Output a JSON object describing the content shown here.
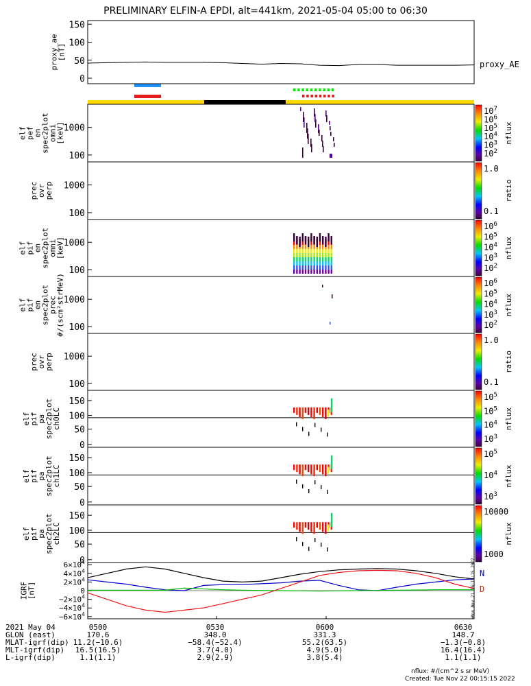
{
  "title": "PRELIMINARY ELFIN-A EPDI, alt=441km, 2021-05-04 05:00 to 06:30",
  "colors": {
    "science_bar": "#ffd700",
    "eclipse_bar": "#000000",
    "blue_marker": "#1e90ff",
    "red_marker": "#e41a1c",
    "green_marker": "#00ee00",
    "igrf_n": "#0000cc",
    "igrf_d": "#dd2200"
  },
  "chart_data": [
    {
      "type": "line",
      "panel": "proxy_ae",
      "ylabel": [
        "proxy_ae",
        "[nT]"
      ],
      "yticks": [
        0,
        50,
        100,
        150
      ],
      "ylim": [
        0,
        160
      ],
      "series_label": "proxy_AE",
      "x": [
        0,
        0.05,
        0.1,
        0.15,
        0.2,
        0.25,
        0.3,
        0.35,
        0.4,
        0.45,
        0.5,
        0.55,
        0.6,
        0.65,
        0.7,
        0.75,
        0.8,
        0.85,
        0.9,
        0.95,
        1.0
      ],
      "values": [
        42,
        43,
        44,
        45,
        44,
        44,
        44,
        43,
        41,
        39,
        41,
        40,
        36,
        35,
        38,
        38,
        36,
        36,
        36,
        36,
        37
      ]
    },
    {
      "type": "heatmap",
      "panel": "elf_pef_en_spec2plot_omni",
      "ylabel": [
        "elf",
        "pef",
        "en",
        "spec2plot",
        "omni",
        "[keV]"
      ],
      "yticks": [
        "100",
        "1000"
      ],
      "colorbar_ticks": [
        "10^7",
        "10^6",
        "10^5",
        "10^4",
        "10^3",
        "10^2"
      ],
      "colorbar_label": "nflux"
    },
    {
      "type": "heatmap",
      "panel": "prec_ovr_perp_e",
      "ylabel": [
        "prec",
        "ovr",
        "perp"
      ],
      "yticks": [
        "100",
        "1000"
      ],
      "colorbar_ticks": [
        "1.0",
        "0.1"
      ],
      "colorbar_label": "ratio"
    },
    {
      "type": "heatmap",
      "panel": "elf_pif_en_spec2plot_omni",
      "ylabel": [
        "elf",
        "pif",
        "en",
        "spec2plot",
        "omni",
        "[keV]"
      ],
      "yticks": [
        "100",
        "1000"
      ],
      "colorbar_ticks": [
        "10^6",
        "10^5",
        "10^4",
        "10^3",
        "10^2"
      ],
      "colorbar_label": "nflux"
    },
    {
      "type": "heatmap",
      "panel": "elf_pif_en_spec2plot_prec",
      "ylabel": [
        "elf",
        "pif",
        "en",
        "spec2plot",
        "prec",
        "#/(scm²strMeV)"
      ],
      "yticks": [
        "100",
        "1000"
      ],
      "colorbar_ticks": [
        "10^6",
        "10^5",
        "10^4",
        "10^3",
        "10^2"
      ],
      "colorbar_label": "nflux"
    },
    {
      "type": "heatmap",
      "panel": "prec_ovr_perp_i",
      "ylabel": [
        "prec",
        "ovr",
        "perp"
      ],
      "yticks": [
        "100",
        "1000"
      ],
      "colorbar_ticks": [
        "1.0",
        "0.1"
      ],
      "colorbar_label": "ratio"
    },
    {
      "type": "heatmap",
      "panel": "elf_pif_pa_spec2plot_ch0LC",
      "ylabel": [
        "elf",
        "pif",
        "pa",
        "spec2plot",
        "ch0LC"
      ],
      "yticks": [
        "0",
        "50",
        "100",
        "150"
      ],
      "colorbar_ticks": [
        "10^5",
        "10^5",
        "10^4",
        "10^3"
      ],
      "colorbar_label": "nflux"
    },
    {
      "type": "heatmap",
      "panel": "elf_pif_pa_spec2plot_ch1LC",
      "ylabel": [
        "elf",
        "pif",
        "pa",
        "spec2plot",
        "ch1LC"
      ],
      "yticks": [
        "0",
        "50",
        "100",
        "150"
      ],
      "colorbar_ticks": [
        "10^5",
        "10^4",
        "10^3"
      ],
      "colorbar_label": "nflux"
    },
    {
      "type": "heatmap",
      "panel": "elf_pif_pa_spec2plot_ch2LC",
      "ylabel": [
        "elf",
        "pif",
        "pa",
        "spec2plot",
        "ch2LC"
      ],
      "yticks": [
        "0",
        "50",
        "100",
        "150"
      ],
      "colorbar_ticks": [
        "10000",
        "1000"
      ],
      "colorbar_label": "nflux"
    },
    {
      "type": "line",
      "panel": "igrf",
      "ylabel": [
        "IGRF",
        "[nT]"
      ],
      "yticks": [
        "6×10^4",
        "4×10^4",
        "2×10^4",
        "0",
        "−2×10^4",
        "−4×10^4",
        "−6×10^4"
      ],
      "ylim": [
        -65000,
        65000
      ],
      "x": [
        0,
        0.05,
        0.1,
        0.15,
        0.2,
        0.25,
        0.3,
        0.35,
        0.4,
        0.45,
        0.5,
        0.55,
        0.6,
        0.65,
        0.7,
        0.75,
        0.8,
        0.85,
        0.9,
        0.95,
        1.0
      ],
      "series": [
        {
          "name": "black",
          "color": "#000000",
          "values": [
            30000,
            40000,
            50000,
            55000,
            50000,
            40000,
            30000,
            22000,
            20000,
            22000,
            30000,
            38000,
            44000,
            48000,
            50000,
            51000,
            50000,
            46000,
            40000,
            32000,
            27000
          ]
        },
        {
          "name": "blue",
          "color": "#0000cc",
          "values": [
            25000,
            20000,
            15000,
            8000,
            2000,
            0,
            12000,
            14000,
            14000,
            16000,
            18000,
            22000,
            24000,
            12000,
            2000,
            0,
            8000,
            15000,
            20000,
            25000,
            27000
          ]
        },
        {
          "name": "green",
          "color": "#00bb00",
          "values": [
            1000,
            1000,
            1000,
            1000,
            1000,
            6000,
            4000,
            2000,
            1000,
            500,
            0,
            -500,
            -1000,
            -500,
            0,
            500,
            1000,
            1500,
            2000,
            2000,
            2000
          ]
        },
        {
          "name": "red",
          "color": "#ee1111",
          "values": [
            -5000,
            -20000,
            -35000,
            -45000,
            -50000,
            -45000,
            -40000,
            -30000,
            -20000,
            -10000,
            5000,
            20000,
            35000,
            42000,
            46000,
            47000,
            46000,
            40000,
            30000,
            15000,
            5000
          ]
        }
      ]
    }
  ],
  "colorbar_labels": [
    "N",
    "D"
  ],
  "xaxis": {
    "rows": [
      {
        "label": "2021 May 04",
        "values": [
          "0500",
          "0530",
          "0600",
          "0630"
        ]
      },
      {
        "label": "GLON (east)",
        "values": [
          "170.6",
          "348.0",
          "331.3",
          "148.7"
        ]
      },
      {
        "label": "MLAT-igrf(dip)",
        "values": [
          "11.2(−10.6)",
          "−58.4(−52.4)",
          "55.2(63.5)",
          "−1.3(−0.8)"
        ]
      },
      {
        "label": "MLT-igrf(dip)",
        "values": [
          "16.5(16.5)",
          "3.7(4.0)",
          "4.9(5.0)",
          "16.4(16.4)"
        ]
      },
      {
        "label": "L-igrf(dip)",
        "values": [
          "1.1(1.1)",
          "2.9(2.9)",
          "3.8(5.4)",
          "1.1(1.1)"
        ]
      }
    ]
  },
  "footer": {
    "units": "nflux: #/(cm^2 s sr MeV)",
    "created": "Created: Tue Nov 22 00:15:15 2022",
    "side_stamp": "Mon Nov 21 16:15:15 2022"
  }
}
